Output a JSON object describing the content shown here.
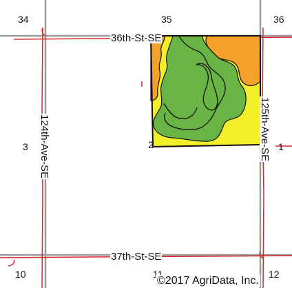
{
  "map": {
    "section_numbers": {
      "s34": "34",
      "s35": "35",
      "s36": "36",
      "s3": "3",
      "s2": "2",
      "s1": "1",
      "s10": "10",
      "s11": "11",
      "s12": "12"
    },
    "roads": {
      "north": "36th-St-SE",
      "south": "37th-St-SE",
      "west": "124th-Ave-SE",
      "east": "125th-Ave-SE"
    },
    "copyright": "©2017 AgriData, Inc.",
    "colors": {
      "field_yellow": "#f2ee2a",
      "zone_orange": "#f4a12a",
      "zone_green": "#6ab446",
      "section_line": "#9a9a9a",
      "road_line": "#d62828",
      "boundary": "#111111"
    }
  }
}
